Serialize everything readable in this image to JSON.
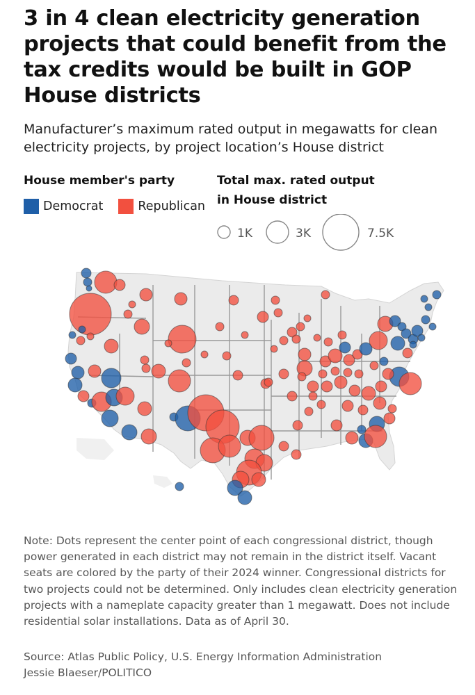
{
  "title": "3 in 4 clean electricity generation projects that could benefit from the tax credits would be built in GOP House districts",
  "subtitle": "Manufacturer’s maximum rated output in megawatts for clean electricity projects, by project location’s House district",
  "legend": {
    "party_heading": "House member's party",
    "size_heading": "Total max. rated output in House district",
    "democrat_label": "Democrat",
    "republican_label": "Republican",
    "democrat_color": "#1f5fa8",
    "republican_color": "#f2503f",
    "sizes": [
      {
        "label": "1K",
        "value": 1000
      },
      {
        "label": "3K",
        "value": 3000
      },
      {
        "label": "7.5K",
        "value": 7500
      }
    ]
  },
  "note": "Note: Dots represent the center point of each congressional district, though power generated in each district may not remain in the district itself. Vacant seats are colored by the party of their 2024 winner. Congressional districts for two projects could not be determined. Only includes clean electricity generation projects with a nameplate capacity greater than 1 megawatt. Does not include residential solar installations. Data as of April 30.",
  "source": "Source: Atlas Public Policy, U.S. Energy Information Administration",
  "credit": "Jessie Blaeser/POLITICO"
}
